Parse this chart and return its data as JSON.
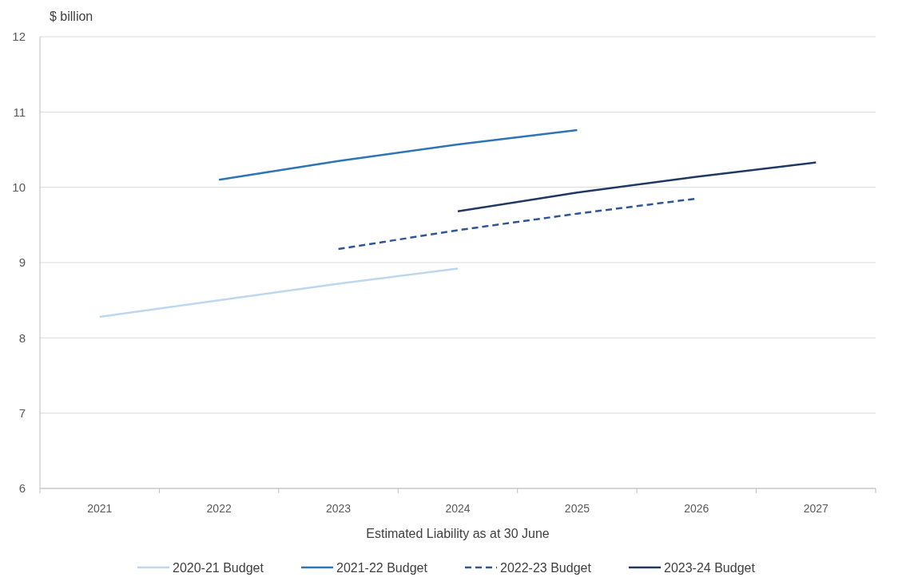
{
  "chart_data": {
    "type": "line",
    "ylabel": "$ billion",
    "xlabel": "Estimated Liability as at 30 June",
    "categories": [
      "2021",
      "2022",
      "2023",
      "2024",
      "2025",
      "2026",
      "2027"
    ],
    "series": [
      {
        "name": "2020-21 Budget",
        "color": "#bdd7ee",
        "values": [
          8.28,
          8.5,
          8.72,
          8.92,
          null,
          null,
          null
        ]
      },
      {
        "name": "2021-22 Budget",
        "color": "#2e75b6",
        "values": [
          null,
          10.1,
          10.35,
          10.57,
          10.76,
          null,
          null
        ]
      },
      {
        "name": "2022-23 Budget",
        "color": "#2f5597",
        "line_style": "dashed",
        "values": [
          null,
          null,
          9.18,
          9.43,
          9.65,
          9.85,
          null
        ]
      },
      {
        "name": "2023-24 Budget",
        "color": "#1f3864",
        "values": [
          null,
          null,
          null,
          9.68,
          9.93,
          10.14,
          10.33
        ]
      }
    ],
    "ylim": [
      6,
      12
    ],
    "yticks": [
      6,
      7,
      8,
      9,
      10,
      11,
      12
    ],
    "grid": "y",
    "legend": "bottom",
    "marker": "none"
  }
}
